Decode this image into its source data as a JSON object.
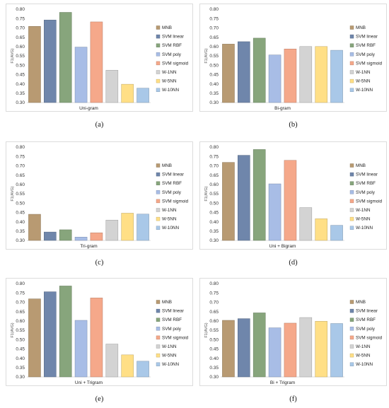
{
  "figure": {
    "legend": [
      {
        "name": "MNB",
        "color": "#b89a72"
      },
      {
        "name": "SVM linear",
        "color": "#6f86ab"
      },
      {
        "name": "SVM RBF",
        "color": "#87a57c"
      },
      {
        "name": "SVM poly",
        "color": "#a8bde6"
      },
      {
        "name": "SVM sigmoid",
        "color": "#f5a88a"
      },
      {
        "name": "W-1NN",
        "color": "#d3d3d3"
      },
      {
        "name": "W-5NN",
        "color": "#ffdf86"
      },
      {
        "name": "W-10NN",
        "color": "#a9c8e8"
      }
    ]
  },
  "chart_data": [
    {
      "type": "bar",
      "caption": "(a)",
      "xlabel": "Uni-gram",
      "ylabel": "F1(AVG)",
      "ylim": [
        0.3,
        0.8
      ],
      "yticks": [
        "0.30",
        "0.35",
        "0.40",
        "0.45",
        "0.50",
        "0.55",
        "0.60",
        "0.65",
        "0.70",
        "0.75",
        "0.80"
      ],
      "values": [
        0.708,
        0.742,
        0.783,
        0.597,
        0.732,
        0.473,
        0.398,
        0.377
      ]
    },
    {
      "type": "bar",
      "caption": "(b)",
      "xlabel": "Bi-gram",
      "ylabel": "F1(AVG)",
      "ylim": [
        0.3,
        0.8
      ],
      "yticks": [
        "0.30",
        "0.35",
        "0.40",
        "0.45",
        "0.50",
        "0.55",
        "0.60",
        "0.65",
        "0.70",
        "0.75",
        "0.80"
      ],
      "values": [
        0.613,
        0.626,
        0.645,
        0.555,
        0.587,
        0.6,
        0.6,
        0.58
      ]
    },
    {
      "type": "bar",
      "caption": "(c)",
      "xlabel": "Tri-gram",
      "ylabel": "F1(AVG)",
      "ylim": [
        0.3,
        0.8
      ],
      "yticks": [
        "0.30",
        "0.35",
        "0.40",
        "0.45",
        "0.50",
        "0.55",
        "0.60",
        "0.65",
        "0.70",
        "0.75",
        "0.80"
      ],
      "values": [
        0.44,
        0.345,
        0.357,
        0.318,
        0.341,
        0.409,
        0.446,
        0.441
      ]
    },
    {
      "type": "bar",
      "caption": "(d)",
      "xlabel": "Uni + Bigram",
      "ylabel": "F1(AVG)",
      "ylim": [
        0.3,
        0.8
      ],
      "yticks": [
        "0.30",
        "0.35",
        "0.40",
        "0.45",
        "0.50",
        "0.55",
        "0.60",
        "0.65",
        "0.70",
        "0.75",
        "0.80"
      ],
      "values": [
        0.718,
        0.756,
        0.787,
        0.603,
        0.729,
        0.476,
        0.416,
        0.381
      ]
    },
    {
      "type": "bar",
      "caption": "(e)",
      "xlabel": "Uni + Trigram",
      "ylabel": "F1(AVG)",
      "ylim": [
        0.3,
        0.8
      ],
      "yticks": [
        "0.30",
        "0.35",
        "0.40",
        "0.45",
        "0.50",
        "0.55",
        "0.60",
        "0.65",
        "0.70",
        "0.75",
        "0.80"
      ],
      "values": [
        0.718,
        0.756,
        0.787,
        0.603,
        0.723,
        0.476,
        0.418,
        0.384
      ]
    },
    {
      "type": "bar",
      "caption": "(f)",
      "xlabel": "Bi + Trigram",
      "ylabel": "F1(AVG)",
      "ylim": [
        0.3,
        0.8
      ],
      "yticks": [
        "0.30",
        "0.35",
        "0.40",
        "0.45",
        "0.50",
        "0.55",
        "0.60",
        "0.65",
        "0.70",
        "0.75",
        "0.80"
      ],
      "values": [
        0.603,
        0.612,
        0.643,
        0.563,
        0.588,
        0.618,
        0.598,
        0.586
      ]
    }
  ]
}
